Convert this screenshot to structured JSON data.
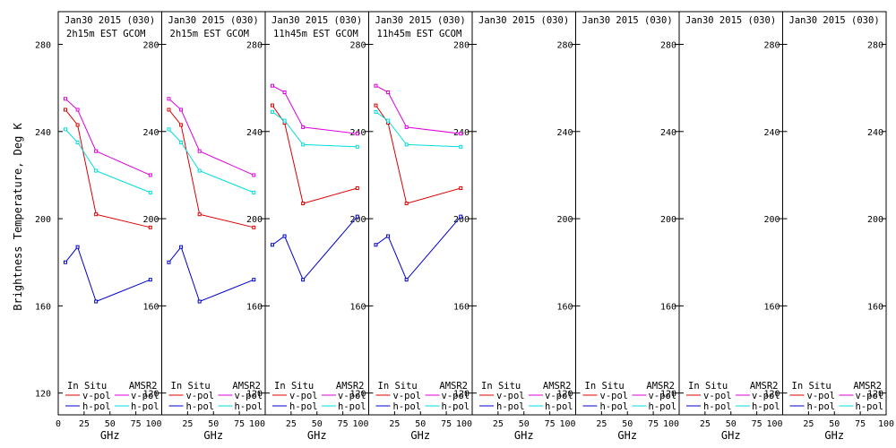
{
  "chart_data": {
    "type": "line",
    "ylabel": "Brightness Temperature, Deg K",
    "xlabel": "GHz",
    "xlim": [
      0,
      100
    ],
    "ylim": [
      110,
      295
    ],
    "x_ticks": [
      0,
      25,
      50,
      75,
      100
    ],
    "y_ticks": [
      120,
      160,
      200,
      240,
      280
    ],
    "legend": {
      "in_situ_label": "In Situ",
      "amsr2_label": "AMSR2",
      "vpol_label": "v-pol",
      "hpol_label": "h-pol",
      "placement": "bottom"
    },
    "colors": {
      "in_situ_v": "#dd0000",
      "in_situ_h": "#0000cc",
      "amsr2_v": "#dd00dd",
      "amsr2_h": "#00dddd"
    },
    "panels": [
      {
        "title": "Jan30 2015 (030)",
        "subtitle": "2h15m EST GCOM",
        "series": [
          {
            "name": "In Situ v-pol",
            "x": [
              6.9,
              18.7,
              36.5,
              89.0
            ],
            "y": [
              250,
              243,
              202,
              196
            ]
          },
          {
            "name": "In Situ h-pol",
            "x": [
              6.9,
              18.7,
              36.5,
              89.0
            ],
            "y": [
              180,
              187,
              162,
              172
            ]
          },
          {
            "name": "AMSR2 v-pol",
            "x": [
              6.9,
              18.7,
              36.5,
              89.0
            ],
            "y": [
              255,
              250,
              231,
              220
            ]
          },
          {
            "name": "AMSR2 h-pol",
            "x": [
              6.9,
              18.7,
              36.5,
              89.0
            ],
            "y": [
              241,
              235,
              222,
              212
            ]
          }
        ]
      },
      {
        "title": "Jan30 2015 (030)",
        "subtitle": "2h15m EST GCOM",
        "series": [
          {
            "name": "In Situ v-pol",
            "x": [
              6.9,
              18.7,
              36.5,
              89.0
            ],
            "y": [
              250,
              243,
              202,
              196
            ]
          },
          {
            "name": "In Situ h-pol",
            "x": [
              6.9,
              18.7,
              36.5,
              89.0
            ],
            "y": [
              180,
              187,
              162,
              172
            ]
          },
          {
            "name": "AMSR2 v-pol",
            "x": [
              6.9,
              18.7,
              36.5,
              89.0
            ],
            "y": [
              255,
              250,
              231,
              220
            ]
          },
          {
            "name": "AMSR2 h-pol",
            "x": [
              6.9,
              18.7,
              36.5,
              89.0
            ],
            "y": [
              241,
              235,
              222,
              212
            ]
          }
        ]
      },
      {
        "title": "Jan30 2015 (030)",
        "subtitle": "11h45m EST GCOM",
        "series": [
          {
            "name": "In Situ v-pol",
            "x": [
              6.9,
              18.7,
              36.5,
              89.0
            ],
            "y": [
              252,
              244,
              207,
              214
            ]
          },
          {
            "name": "In Situ h-pol",
            "x": [
              6.9,
              18.7,
              36.5,
              89.0
            ],
            "y": [
              188,
              192,
              172,
              201
            ]
          },
          {
            "name": "AMSR2 v-pol",
            "x": [
              6.9,
              18.7,
              36.5,
              89.0
            ],
            "y": [
              261,
              258,
              242,
              239
            ]
          },
          {
            "name": "AMSR2 h-pol",
            "x": [
              6.9,
              18.7,
              36.5,
              89.0
            ],
            "y": [
              249,
              245,
              234,
              233
            ]
          }
        ]
      },
      {
        "title": "Jan30 2015 (030)",
        "subtitle": "11h45m EST GCOM",
        "series": [
          {
            "name": "In Situ v-pol",
            "x": [
              6.9,
              18.7,
              36.5,
              89.0
            ],
            "y": [
              252,
              244,
              207,
              214
            ]
          },
          {
            "name": "In Situ h-pol",
            "x": [
              6.9,
              18.7,
              36.5,
              89.0
            ],
            "y": [
              188,
              192,
              172,
              201
            ]
          },
          {
            "name": "AMSR2 v-pol",
            "x": [
              6.9,
              18.7,
              36.5,
              89.0
            ],
            "y": [
              261,
              258,
              242,
              239
            ]
          },
          {
            "name": "AMSR2 h-pol",
            "x": [
              6.9,
              18.7,
              36.5,
              89.0
            ],
            "y": [
              249,
              245,
              234,
              233
            ]
          }
        ]
      },
      {
        "title": "Jan30 2015 (030)",
        "subtitle": "",
        "series": []
      },
      {
        "title": "Jan30 2015 (030)",
        "subtitle": "",
        "series": []
      },
      {
        "title": "Jan30 2015 (030)",
        "subtitle": "",
        "series": []
      },
      {
        "title": "Jan30 2015 (030)",
        "subtitle": "",
        "series": []
      }
    ]
  }
}
